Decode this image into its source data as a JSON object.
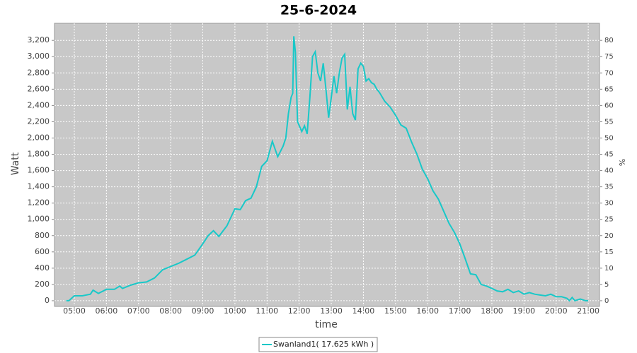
{
  "chart_data": {
    "type": "line",
    "title": "25-6-2024",
    "x_label": "time",
    "y_label": "Watt",
    "y2_label": "%",
    "x": [
      "04:45",
      "04:50",
      "05:00",
      "05:15",
      "05:30",
      "05:35",
      "05:45",
      "06:00",
      "06:15",
      "06:25",
      "06:30",
      "06:45",
      "07:00",
      "07:15",
      "07:30",
      "07:45",
      "08:00",
      "08:15",
      "08:30",
      "08:45",
      "09:00",
      "09:10",
      "09:20",
      "09:30",
      "09:45",
      "10:00",
      "10:10",
      "10:20",
      "10:30",
      "10:40",
      "10:50",
      "11:00",
      "11:10",
      "11:20",
      "11:30",
      "11:35",
      "11:40",
      "11:45",
      "11:48",
      "11:50",
      "11:53",
      "11:57",
      "12:05",
      "12:10",
      "12:15",
      "12:20",
      "12:25",
      "12:30",
      "12:35",
      "12:40",
      "12:45",
      "12:50",
      "12:55",
      "13:00",
      "13:05",
      "13:10",
      "13:15",
      "13:20",
      "13:25",
      "13:30",
      "13:35",
      "13:40",
      "13:45",
      "13:50",
      "13:55",
      "14:00",
      "14:05",
      "14:10",
      "14:15",
      "14:20",
      "14:25",
      "14:30",
      "14:40",
      "14:50",
      "15:00",
      "15:10",
      "15:20",
      "15:30",
      "15:40",
      "15:50",
      "16:00",
      "16:10",
      "16:20",
      "16:30",
      "16:40",
      "16:50",
      "17:00",
      "17:10",
      "17:20",
      "17:30",
      "17:40",
      "17:50",
      "18:00",
      "18:10",
      "18:20",
      "18:30",
      "18:40",
      "18:50",
      "19:00",
      "19:10",
      "19:20",
      "19:30",
      "19:40",
      "19:50",
      "20:00",
      "20:10",
      "20:20",
      "20:25",
      "20:30",
      "20:35",
      "20:45",
      "20:55",
      "21:00"
    ],
    "series": [
      {
        "name": "Swanland1( 17.625 kWh )",
        "color": "#19c8c8",
        "values": [
          0,
          0,
          60,
          60,
          80,
          130,
          90,
          140,
          140,
          180,
          150,
          190,
          220,
          230,
          280,
          380,
          420,
          460,
          510,
          560,
          700,
          800,
          860,
          790,
          920,
          1130,
          1120,
          1230,
          1260,
          1400,
          1650,
          1720,
          1960,
          1770,
          1900,
          2000,
          2300,
          2500,
          2550,
          3250,
          3050,
          2200,
          2080,
          2150,
          2050,
          2500,
          3000,
          3060,
          2800,
          2700,
          2920,
          2600,
          2250,
          2500,
          2760,
          2550,
          2800,
          2980,
          3030,
          2350,
          2630,
          2300,
          2220,
          2850,
          2920,
          2880,
          2700,
          2730,
          2680,
          2660,
          2600,
          2560,
          2450,
          2380,
          2280,
          2160,
          2120,
          1950,
          1800,
          1620,
          1500,
          1350,
          1250,
          1100,
          950,
          840,
          700,
          520,
          330,
          320,
          200,
          180,
          150,
          120,
          110,
          140,
          100,
          120,
          80,
          100,
          80,
          70,
          60,
          80,
          50,
          50,
          30,
          0,
          40,
          0,
          20,
          0,
          0
        ]
      }
    ],
    "xlim": [
      "04:23",
      "21:21"
    ],
    "xticks": [
      "05:00",
      "06:00",
      "07:00",
      "08:00",
      "09:00",
      "10:00",
      "11:00",
      "12:00",
      "13:00",
      "14:00",
      "15:00",
      "16:00",
      "17:00",
      "18:00",
      "19:00",
      "20:00",
      "21:00"
    ],
    "ylim": [
      -70,
      3410
    ],
    "yticks": [
      0,
      200,
      400,
      600,
      800,
      {
        "value": 1000,
        "label": "1,000"
      },
      {
        "value": 1200,
        "label": "1,200"
      },
      {
        "value": 1400,
        "label": "1,400"
      },
      {
        "value": 1600,
        "label": "1,600"
      },
      {
        "value": 1800,
        "label": "1,800"
      },
      {
        "value": 2000,
        "label": "2,000"
      },
      {
        "value": 2200,
        "label": "2,200"
      },
      {
        "value": 2400,
        "label": "2,400"
      },
      {
        "value": 2600,
        "label": "2,600"
      },
      {
        "value": 2800,
        "label": "2,800"
      },
      {
        "value": 3000,
        "label": "3,000"
      },
      {
        "value": 3200,
        "label": "3,200"
      }
    ],
    "y2lim": [
      -1.75,
      85.25
    ],
    "y2ticks": [
      0,
      5,
      10,
      15,
      20,
      25,
      30,
      35,
      40,
      45,
      50,
      55,
      60,
      65,
      70,
      75,
      80
    ],
    "grid": true,
    "background": "#c8c8c8"
  }
}
